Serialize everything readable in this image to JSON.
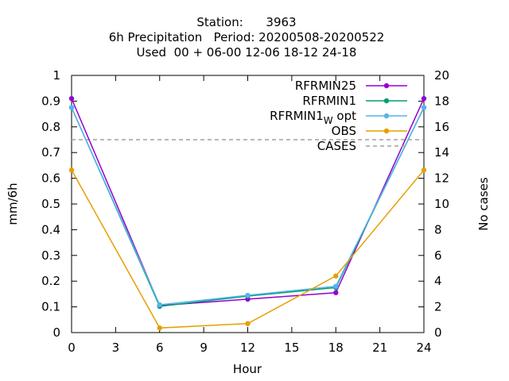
{
  "chart_data": {
    "type": "line",
    "title_lines": [
      "Station:      3963",
      "6h Precipitation   Period: 20200508-20200522",
      "Used  00 + 06-00 12-06 18-12 24-18"
    ],
    "xlabel": "Hour",
    "ylabel": "mm/6h",
    "y2label": "No cases",
    "xlim": [
      0,
      24
    ],
    "ylim": [
      0,
      1
    ],
    "y2lim": [
      0,
      20
    ],
    "xticks": [
      0,
      3,
      6,
      9,
      12,
      15,
      18,
      21,
      24
    ],
    "yticks": [
      0,
      0.1,
      0.2,
      0.3,
      0.4,
      0.5,
      0.6,
      0.7,
      0.8,
      0.9,
      1
    ],
    "y2ticks": [
      0,
      2,
      4,
      6,
      8,
      10,
      12,
      14,
      16,
      18,
      20
    ],
    "x": [
      0,
      6,
      12,
      18,
      24
    ],
    "legend_position": "top-right",
    "grid": false,
    "series": [
      {
        "name": "RFRMIN25",
        "color": "#9400d3",
        "values": [
          0.91,
          0.105,
          0.13,
          0.155,
          0.91
        ]
      },
      {
        "name": "RFRMIN1",
        "color": "#009e73",
        "values": [
          0.875,
          0.102,
          0.142,
          0.175,
          0.875
        ]
      },
      {
        "name": "RFRMIN1_W opt",
        "label_main": "RFRMIN1",
        "label_sub": "W",
        "label_tail": " opt",
        "color": "#56b4e9",
        "values": [
          0.875,
          0.108,
          0.145,
          0.18,
          0.875
        ]
      },
      {
        "name": "OBS",
        "color": "#e69f00",
        "values": [
          0.632,
          0.018,
          0.035,
          0.22,
          0.632
        ]
      }
    ],
    "cases": {
      "name": "CASES",
      "color": "#a0a0a0",
      "value": 15
    }
  }
}
